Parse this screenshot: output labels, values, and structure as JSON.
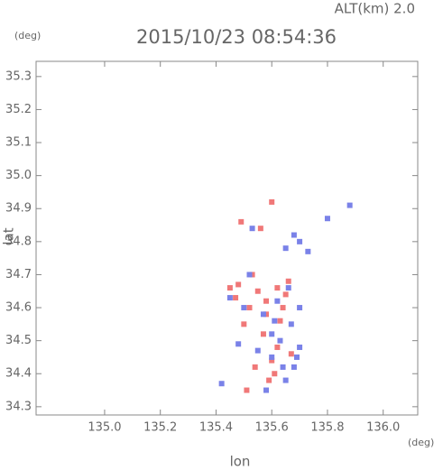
{
  "chart_data": {
    "type": "scatter",
    "title": "2015/10/23 08:54:36",
    "subtitle": "ALT(km) 2.0",
    "y_unit": "(deg)",
    "x_unit": "(deg)",
    "x_label": "lon",
    "y_label": "lat",
    "xlim": [
      134.754,
      136.124
    ],
    "ylim": [
      34.275,
      35.346
    ],
    "xticks": [
      {
        "value": 135,
        "label": "135.0"
      },
      135.2,
      135.4,
      135.6,
      135.8,
      {
        "value": 136,
        "label": "136.0"
      }
    ],
    "yticks": [
      34.3,
      34.4,
      34.5,
      34.6,
      34.7,
      34.8,
      34.9,
      {
        "value": 35,
        "label": "35.0"
      },
      35.1,
      35.2,
      35.3
    ],
    "series": [
      {
        "color": "#f07878",
        "x": [
          135.6,
          135.55,
          135.62,
          135.48,
          135.52,
          135.58,
          135.65,
          135.63,
          135.45,
          135.5,
          135.57,
          135.6,
          135.67,
          135.54,
          135.61,
          135.59,
          135.47,
          135.53,
          135.66,
          135.62,
          135.56,
          135.49,
          135.64,
          135.58,
          135.51
        ],
        "values": [
          34.92,
          34.65,
          34.66,
          34.67,
          34.6,
          34.58,
          34.64,
          34.56,
          34.66,
          34.55,
          34.52,
          34.44,
          34.46,
          34.42,
          34.4,
          34.38,
          34.63,
          34.7,
          34.68,
          34.48,
          34.84,
          34.86,
          34.6,
          34.62,
          34.35
        ]
      },
      {
        "color": "#7a82e8",
        "x": [
          135.7,
          135.88,
          135.67,
          135.63,
          135.6,
          135.7,
          135.68,
          135.65,
          135.58,
          135.55,
          135.5,
          135.52,
          135.65,
          135.68,
          135.7,
          135.62,
          135.57,
          135.48,
          135.42,
          135.6,
          135.66,
          135.73,
          135.8,
          135.53,
          135.45,
          135.69,
          135.64,
          135.61
        ],
        "values": [
          34.6,
          34.91,
          34.55,
          34.5,
          34.45,
          34.48,
          34.42,
          34.38,
          34.35,
          34.47,
          34.6,
          34.7,
          34.78,
          34.82,
          34.8,
          34.62,
          34.58,
          34.49,
          34.37,
          34.52,
          34.66,
          34.77,
          34.87,
          34.84,
          34.63,
          34.45,
          34.42,
          34.56
        ]
      }
    ]
  }
}
